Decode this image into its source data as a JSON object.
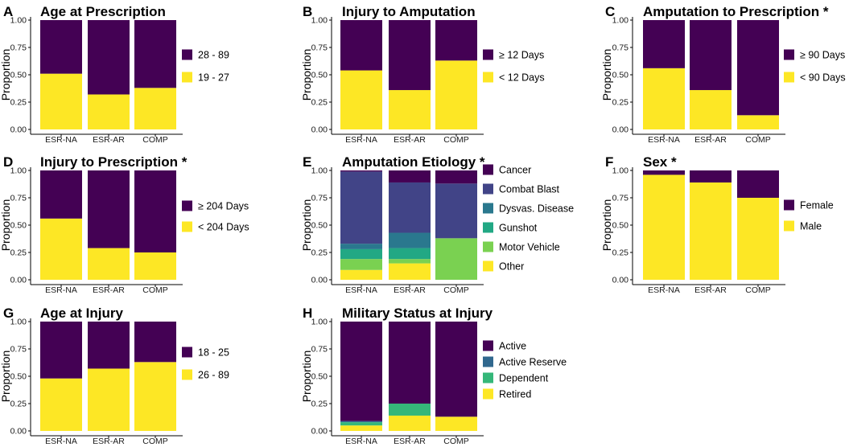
{
  "colors": {
    "purple": "#440154",
    "slate": "#414487",
    "steel": "#2a788e",
    "teal": "#22a884",
    "green": "#7ad151",
    "yellow": "#fde725",
    "dark_steel": "#31688e",
    "green2": "#35b779"
  },
  "y_ticks": [
    "0.00",
    "0.25",
    "0.50",
    "0.75",
    "1.00"
  ],
  "chart_data": [
    {
      "letter": "A",
      "type": "bar",
      "stacked": true,
      "title": "Age at Prescription",
      "ylabel": "Proportion",
      "ylim": [
        0,
        1
      ],
      "categories": [
        "ESR-NA",
        "ESR-AR",
        "COMP"
      ],
      "series": [
        {
          "name": "19 - 27",
          "color": "#fde725",
          "values": [
            0.51,
            0.32,
            0.38
          ]
        },
        {
          "name": "28 - 89",
          "color": "#440154",
          "values": [
            0.49,
            0.68,
            0.62
          ]
        }
      ],
      "legend": [
        "28 - 89",
        "19 - 27"
      ]
    },
    {
      "letter": "B",
      "type": "bar",
      "stacked": true,
      "title": "Injury to Amputation",
      "ylabel": "Proportion",
      "ylim": [
        0,
        1
      ],
      "categories": [
        "ESR-NA",
        "ESR-AR",
        "COMP"
      ],
      "series": [
        {
          "name": "< 12 Days",
          "color": "#fde725",
          "values": [
            0.54,
            0.36,
            0.63
          ]
        },
        {
          "name": "≥ 12 Days",
          "color": "#440154",
          "values": [
            0.46,
            0.64,
            0.37
          ]
        }
      ],
      "legend": [
        "≥ 12 Days",
        "< 12 Days"
      ]
    },
    {
      "letter": "C",
      "type": "bar",
      "stacked": true,
      "title": "Amputation to Prescription *",
      "ylabel": "Proportion",
      "ylim": [
        0,
        1
      ],
      "categories": [
        "ESR-NA",
        "ESR-AR",
        "COMP"
      ],
      "series": [
        {
          "name": "< 90 Days",
          "color": "#fde725",
          "values": [
            0.56,
            0.36,
            0.13
          ]
        },
        {
          "name": "≥ 90 Days",
          "color": "#440154",
          "values": [
            0.44,
            0.64,
            0.87
          ]
        }
      ],
      "legend": [
        "≥ 90 Days",
        "< 90 Days"
      ]
    },
    {
      "letter": "D",
      "type": "bar",
      "stacked": true,
      "title": "Injury to Prescription *",
      "ylabel": "Proportion",
      "ylim": [
        0,
        1
      ],
      "categories": [
        "ESR-NA",
        "ESR-AR",
        "COMP"
      ],
      "series": [
        {
          "name": "< 204 Days",
          "color": "#fde725",
          "values": [
            0.56,
            0.29,
            0.25
          ]
        },
        {
          "name": "≥ 204 Days",
          "color": "#440154",
          "values": [
            0.44,
            0.71,
            0.75
          ]
        }
      ],
      "legend": [
        "≥ 204 Days",
        "< 204 Days"
      ]
    },
    {
      "letter": "E",
      "type": "bar",
      "stacked": true,
      "title": "Amputation Etiology *",
      "ylabel": "Proportion",
      "ylim": [
        0,
        1
      ],
      "categories": [
        "ESR-NA",
        "ESR-AR",
        "COMP"
      ],
      "series": [
        {
          "name": "Other",
          "color": "#fde725",
          "values": [
            0.09,
            0.15,
            0.0
          ]
        },
        {
          "name": "Motor Vehicle",
          "color": "#7ad151",
          "values": [
            0.1,
            0.04,
            0.38
          ]
        },
        {
          "name": "Gunshot",
          "color": "#22a884",
          "values": [
            0.09,
            0.1,
            0.0
          ]
        },
        {
          "name": "Dysvas. Disease",
          "color": "#2a788e",
          "values": [
            0.05,
            0.14,
            0.0
          ]
        },
        {
          "name": "Combat Blast",
          "color": "#414487",
          "values": [
            0.66,
            0.46,
            0.5
          ]
        },
        {
          "name": "Cancer",
          "color": "#440154",
          "values": [
            0.01,
            0.11,
            0.12
          ]
        }
      ],
      "legend": [
        "Cancer",
        "Combat Blast",
        "Dysvas. Disease",
        "Gunshot",
        "Motor Vehicle",
        "Other"
      ]
    },
    {
      "letter": "F",
      "type": "bar",
      "stacked": true,
      "title": "Sex *",
      "ylabel": "Proportion",
      "ylim": [
        0,
        1
      ],
      "categories": [
        "ESR-NA",
        "ESR-AR",
        "COMP"
      ],
      "series": [
        {
          "name": "Male",
          "color": "#fde725",
          "values": [
            0.96,
            0.89,
            0.75
          ]
        },
        {
          "name": "Female",
          "color": "#440154",
          "values": [
            0.04,
            0.11,
            0.25
          ]
        }
      ],
      "legend": [
        "Female",
        "Male"
      ]
    },
    {
      "letter": "G",
      "type": "bar",
      "stacked": true,
      "title": "Age at Injury",
      "ylabel": "Proportion",
      "ylim": [
        0,
        1
      ],
      "categories": [
        "ESR-NA",
        "ESR-AR",
        "COMP"
      ],
      "series": [
        {
          "name": "26 - 89",
          "color": "#fde725",
          "values": [
            0.48,
            0.57,
            0.63
          ]
        },
        {
          "name": "18 - 25",
          "color": "#440154",
          "values": [
            0.52,
            0.43,
            0.37
          ]
        }
      ],
      "legend": [
        "18 - 25",
        "26 - 89"
      ]
    },
    {
      "letter": "H",
      "type": "bar",
      "stacked": true,
      "title": "Military Status at Injury",
      "ylabel": "Proportion",
      "ylim": [
        0,
        1
      ],
      "categories": [
        "ESR-NA",
        "ESR-AR",
        "COMP"
      ],
      "series": [
        {
          "name": "Retired",
          "color": "#fde725",
          "values": [
            0.05,
            0.14,
            0.13
          ]
        },
        {
          "name": "Dependent",
          "color": "#35b779",
          "values": [
            0.03,
            0.11,
            0.0
          ]
        },
        {
          "name": "Active Reserve",
          "color": "#31688e",
          "values": [
            0.01,
            0.0,
            0.0
          ]
        },
        {
          "name": "Active",
          "color": "#440154",
          "values": [
            0.91,
            0.75,
            0.87
          ]
        }
      ],
      "legend": [
        "Active",
        "Active Reserve",
        "Dependent",
        "Retired"
      ]
    }
  ]
}
